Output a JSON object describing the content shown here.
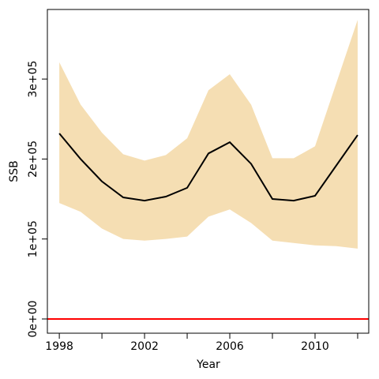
{
  "chart_data": {
    "type": "line",
    "xlabel": "Year",
    "ylabel": "SSB",
    "x": [
      1998,
      1999,
      2000,
      2001,
      2002,
      2003,
      2004,
      2005,
      2006,
      2007,
      2008,
      2009,
      2010,
      2011,
      2012
    ],
    "line": {
      "color": "#000000",
      "values": [
        232000,
        200000,
        172000,
        152000,
        148000,
        153000,
        164000,
        207000,
        221000,
        194000,
        150000,
        148000,
        154000,
        192000,
        230000
      ]
    },
    "band": {
      "color": "#f5deb3",
      "upper": [
        321000,
        268000,
        233000,
        206000,
        198000,
        205000,
        226000,
        286000,
        306000,
        268000,
        201000,
        201000,
        216000,
        295000,
        374000
      ],
      "lower": [
        145000,
        134000,
        113000,
        100000,
        98000,
        100000,
        103000,
        128000,
        137000,
        120000,
        98000,
        95000,
        92000,
        91000,
        88000
      ]
    },
    "hline": {
      "value": 0,
      "color": "#ff0000"
    },
    "xlim": [
      1997.44,
      2012.52
    ],
    "xticks": [
      1998,
      2002,
      2006,
      2010
    ],
    "xminor_ticks": [
      2000,
      2004,
      2008,
      2012
    ],
    "ylim": [
      -17800,
      387000
    ],
    "yticks": [
      {
        "value": 0,
        "label": "0e+00"
      },
      {
        "value": 100000,
        "label": "1e+05"
      },
      {
        "value": 200000,
        "label": "2e+05"
      },
      {
        "value": 300000,
        "label": "3e+05"
      }
    ]
  }
}
